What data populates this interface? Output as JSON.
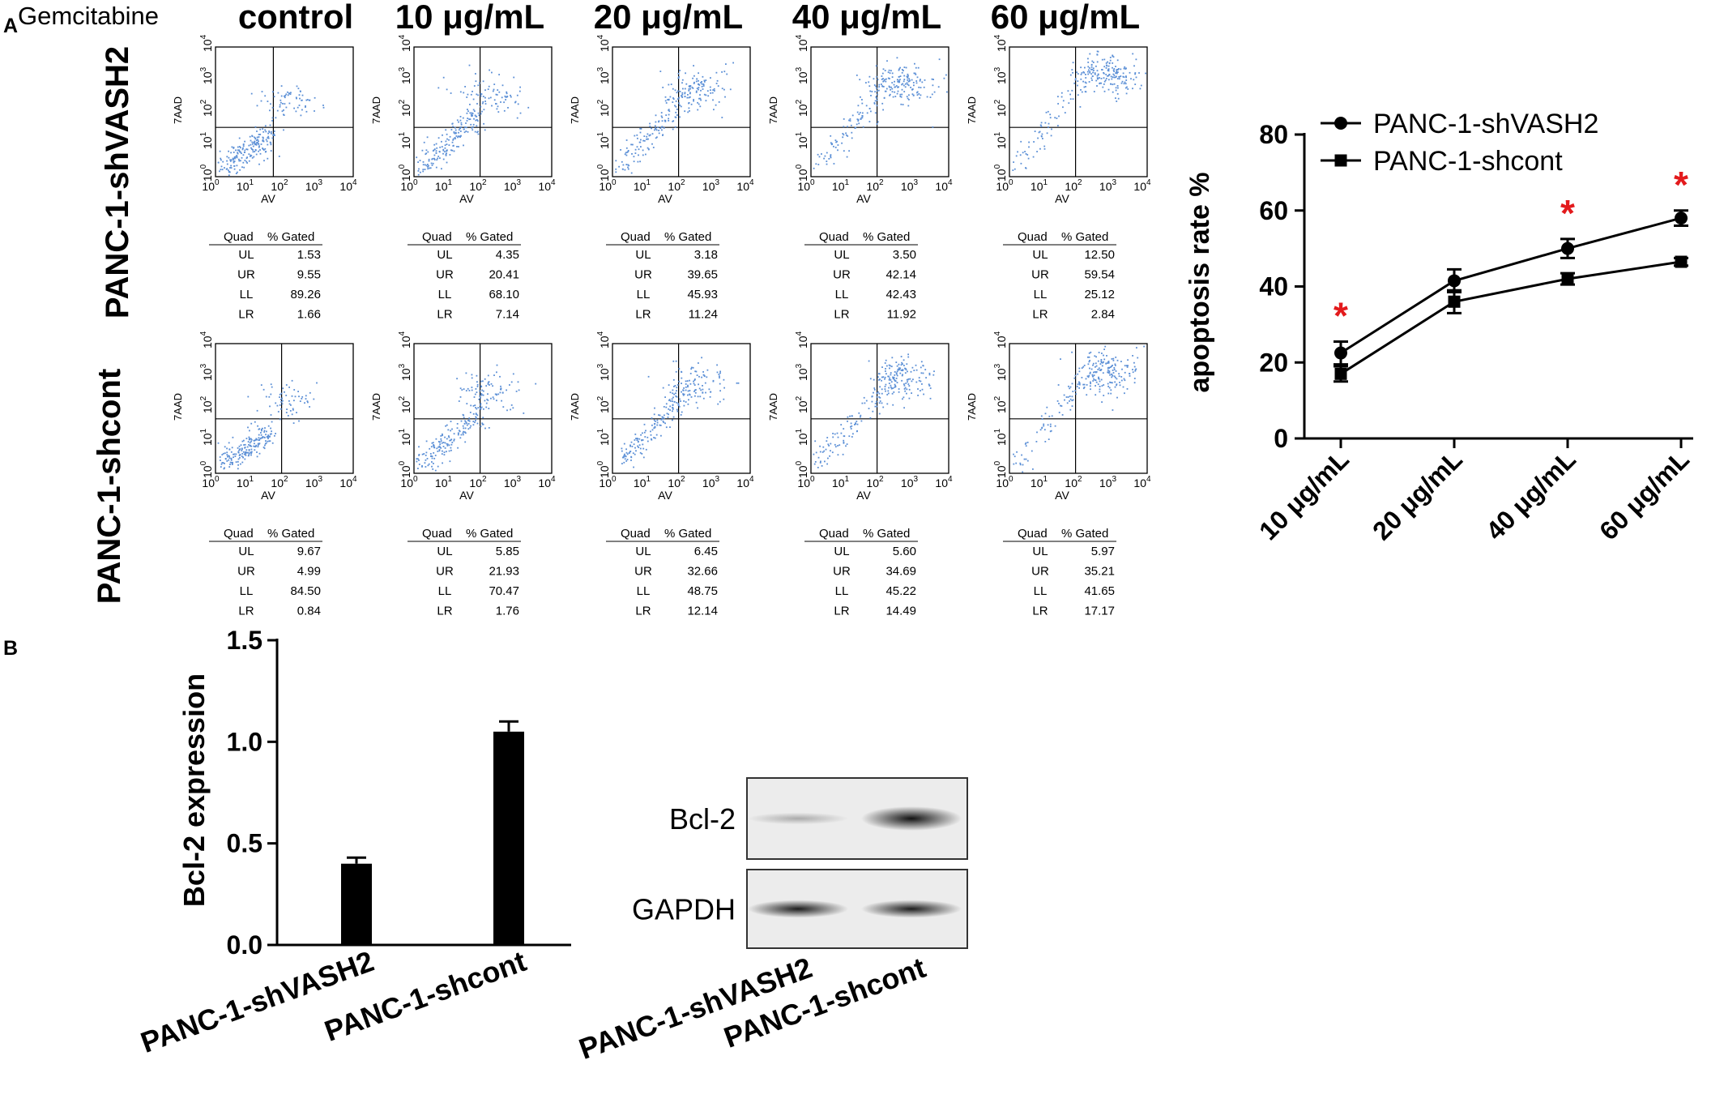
{
  "panel_labels": {
    "a": "A",
    "b": "B"
  },
  "treatment_label": "Gemcitabine",
  "columns": [
    "control",
    "10 μg/mL",
    "20 μg/mL",
    "40 μg/mL",
    "60 μg/mL"
  ],
  "rows": [
    "PANC-1-shVASH2",
    "PANC-1-shcont"
  ],
  "flow_axes": {
    "x_label": "AV",
    "y_label": "7AAD",
    "ticks": [
      {
        "base": "10",
        "exp": "0"
      },
      {
        "base": "10",
        "exp": "1"
      },
      {
        "base": "10",
        "exp": "2"
      },
      {
        "base": "10",
        "exp": "3"
      },
      {
        "base": "10",
        "exp": "4"
      }
    ]
  },
  "quad_header": {
    "quad": "Quad",
    "gated": "% Gated"
  },
  "quad_names": [
    "UL",
    "UR",
    "LL",
    "LR"
  ],
  "quad_tables": [
    [
      [
        "1.53",
        "9.55",
        "89.26",
        "1.66"
      ],
      [
        "4.35",
        "20.41",
        "68.10",
        "7.14"
      ],
      [
        "3.18",
        "39.65",
        "45.93",
        "11.24"
      ],
      [
        "3.50",
        "42.14",
        "42.43",
        "11.92"
      ],
      [
        "12.50",
        "59.54",
        "25.12",
        "2.84"
      ]
    ],
    [
      [
        "9.67",
        "4.99",
        "84.50",
        "0.84"
      ],
      [
        "5.85",
        "21.93",
        "70.47",
        "1.76"
      ],
      [
        "6.45",
        "32.66",
        "48.75",
        "12.14"
      ],
      [
        "5.60",
        "34.69",
        "45.22",
        "14.49"
      ],
      [
        "5.97",
        "35.21",
        "41.65",
        "17.17"
      ]
    ]
  ],
  "chart_data": [
    {
      "type": "line",
      "categories": [
        "10 μg/mL",
        "20 μg/mL",
        "40 μg/mL",
        "60 μg/mL"
      ],
      "series": [
        {
          "name": "PANC-1-shVASH2",
          "marker": "circle",
          "values": [
            22.5,
            41.5,
            50,
            58
          ],
          "errors": [
            3,
            3,
            2.5,
            2
          ]
        },
        {
          "name": "PANC-1-shcont",
          "marker": "square",
          "values": [
            17,
            36,
            42,
            46.5
          ],
          "errors": [
            2,
            3,
            1.5,
            1
          ]
        }
      ],
      "ylabel": "apoptosis rate %",
      "ylim": [
        0,
        80
      ],
      "yticks": [
        0,
        20,
        40,
        60,
        80
      ],
      "significance": {
        "symbol": "*",
        "categories": [
          "10 μg/mL",
          "40 μg/mL",
          "60 μg/mL"
        ],
        "color": "#e31a1c"
      },
      "legend_position": "top-left",
      "grid": false
    },
    {
      "type": "bar",
      "categories": [
        "PANC-1-shVASH2",
        "PANC-1-shcont"
      ],
      "values": [
        0.4,
        1.05
      ],
      "errors": [
        0.03,
        0.05
      ],
      "ylabel": "Bcl-2 expression",
      "ylim": [
        0,
        1.5
      ],
      "yticks": [
        "0.0",
        "0.5",
        "1.0",
        "1.5"
      ],
      "grid": false
    }
  ],
  "blot": {
    "bands": [
      "Bcl-2",
      "GAPDH"
    ],
    "lanes": [
      "PANC-1-shVASH2",
      "PANC-1-shcont"
    ],
    "intensities": [
      [
        0.3,
        1.0
      ],
      [
        0.95,
        0.95
      ]
    ]
  },
  "colors": {
    "ink": "#000000",
    "dots": "#5b8fd6",
    "star": "#e31a1c"
  }
}
